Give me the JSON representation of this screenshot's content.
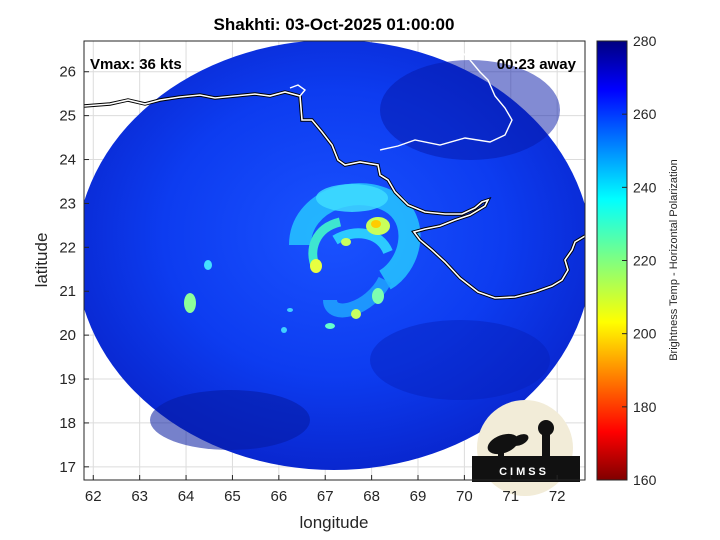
{
  "title": "Shakhti: 03-Oct-2025 01:00:00",
  "annotations": {
    "vmax": "Vmax: 36 kts",
    "time_away": "00:23 away"
  },
  "axes": {
    "xlabel": "longitude",
    "ylabel": "latitude",
    "xticks": [
      "62",
      "63",
      "64",
      "65",
      "66",
      "67",
      "68",
      "69",
      "70",
      "71",
      "72"
    ],
    "yticks": [
      "26",
      "25",
      "24",
      "23",
      "22",
      "21",
      "20",
      "19",
      "18",
      "17"
    ],
    "xlim": [
      61.8,
      72.6
    ],
    "ylim": [
      16.7,
      26.7
    ]
  },
  "colorbar": {
    "label": "Brightness Temp - Horizontal Polarization",
    "ticks": [
      "280",
      "260",
      "240",
      "220",
      "200",
      "180",
      "160"
    ],
    "range": [
      160,
      280
    ],
    "colormap": "jet"
  },
  "logo": {
    "text": "CIMSS"
  },
  "colors": {
    "background_swath": "#0a33e6",
    "coast": "#ffffff"
  },
  "storm_center": {
    "lon": 67.3,
    "lat": 21.9
  }
}
